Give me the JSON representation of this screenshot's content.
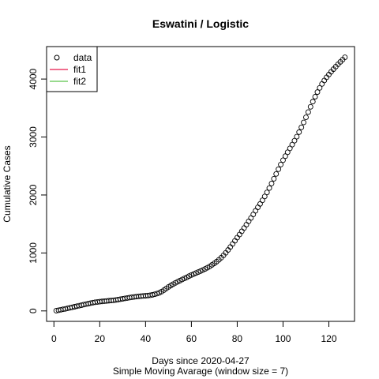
{
  "chart_data": {
    "type": "scatter",
    "title": "Eswatini / Logistic",
    "xlabel": "Days since 2020-04-27",
    "xlabel2": "Simple Moving Avarage (window size = 7)",
    "ylabel": "Cumulative Cases",
    "xlim": [
      -3.2,
      131.2
    ],
    "ylim": [
      -180,
      4560
    ],
    "xticks": [
      0,
      20,
      40,
      60,
      80,
      100,
      120
    ],
    "yticks": [
      0,
      1000,
      2000,
      3000,
      4000
    ],
    "grid": false,
    "legend": {
      "position": "top-left",
      "entries": [
        {
          "label": "data",
          "symbol": "circle",
          "color": "#000000"
        },
        {
          "label": "fit1",
          "symbol": "line",
          "color": "#e8174a"
        },
        {
          "label": "fit2",
          "symbol": "line",
          "color": "#5bc44a"
        }
      ]
    },
    "series": [
      {
        "name": "data",
        "x": [
          1,
          2,
          3,
          4,
          5,
          6,
          7,
          8,
          9,
          10,
          11,
          12,
          13,
          14,
          15,
          16,
          17,
          18,
          19,
          20,
          21,
          22,
          23,
          24,
          25,
          26,
          27,
          28,
          29,
          30,
          31,
          32,
          33,
          34,
          35,
          36,
          37,
          38,
          39,
          40,
          41,
          42,
          43,
          44,
          45,
          46,
          47,
          48,
          49,
          50,
          51,
          52,
          53,
          54,
          55,
          56,
          57,
          58,
          59,
          60,
          61,
          62,
          63,
          64,
          65,
          66,
          67,
          68,
          69,
          70,
          71,
          72,
          73,
          74,
          75,
          76,
          77,
          78,
          79,
          80,
          81,
          82,
          83,
          84,
          85,
          86,
          87,
          88,
          89,
          90,
          91,
          92,
          93,
          94,
          95,
          96,
          97,
          98,
          99,
          100,
          101,
          102,
          103,
          104,
          105,
          106,
          107,
          108,
          109,
          110,
          111,
          112,
          113,
          114,
          115,
          116,
          117,
          118,
          119,
          120,
          121,
          122,
          123,
          124,
          125,
          126,
          127
        ],
        "y": [
          5,
          12,
          20,
          28,
          36,
          45,
          54,
          63,
          72,
          81,
          90,
          99,
          108,
          117,
          125,
          134,
          142,
          149,
          155,
          160,
          164,
          168,
          172,
          176,
          180,
          184,
          189,
          195,
          202,
          209,
          216,
          223,
          230,
          236,
          242,
          247,
          251,
          255,
          258,
          261,
          265,
          271,
          278,
          287,
          299,
          313,
          334,
          359,
          386,
          413,
          438,
          461,
          483,
          503,
          523,
          543,
          561,
          580,
          600,
          619,
          637,
          654,
          671,
          688,
          706,
          725,
          745,
          768,
          794,
          821,
          850,
          882,
          918,
          958,
          1003,
          1051,
          1103,
          1156,
          1210,
          1264,
          1318,
          1374,
          1430,
          1488,
          1546,
          1604,
          1665,
          1727,
          1788,
          1846,
          1908,
          1974,
          2045,
          2119,
          2198,
          2280,
          2363,
          2445,
          2525,
          2600,
          2670,
          2738,
          2804,
          2869,
          2936,
          3006,
          3084,
          3166,
          3252,
          3340,
          3430,
          3520,
          3610,
          3695,
          3775,
          3848,
          3915,
          3975,
          4030,
          4078,
          4125,
          4170,
          4213,
          4255,
          4295,
          4335,
          4375
        ]
      }
    ]
  }
}
